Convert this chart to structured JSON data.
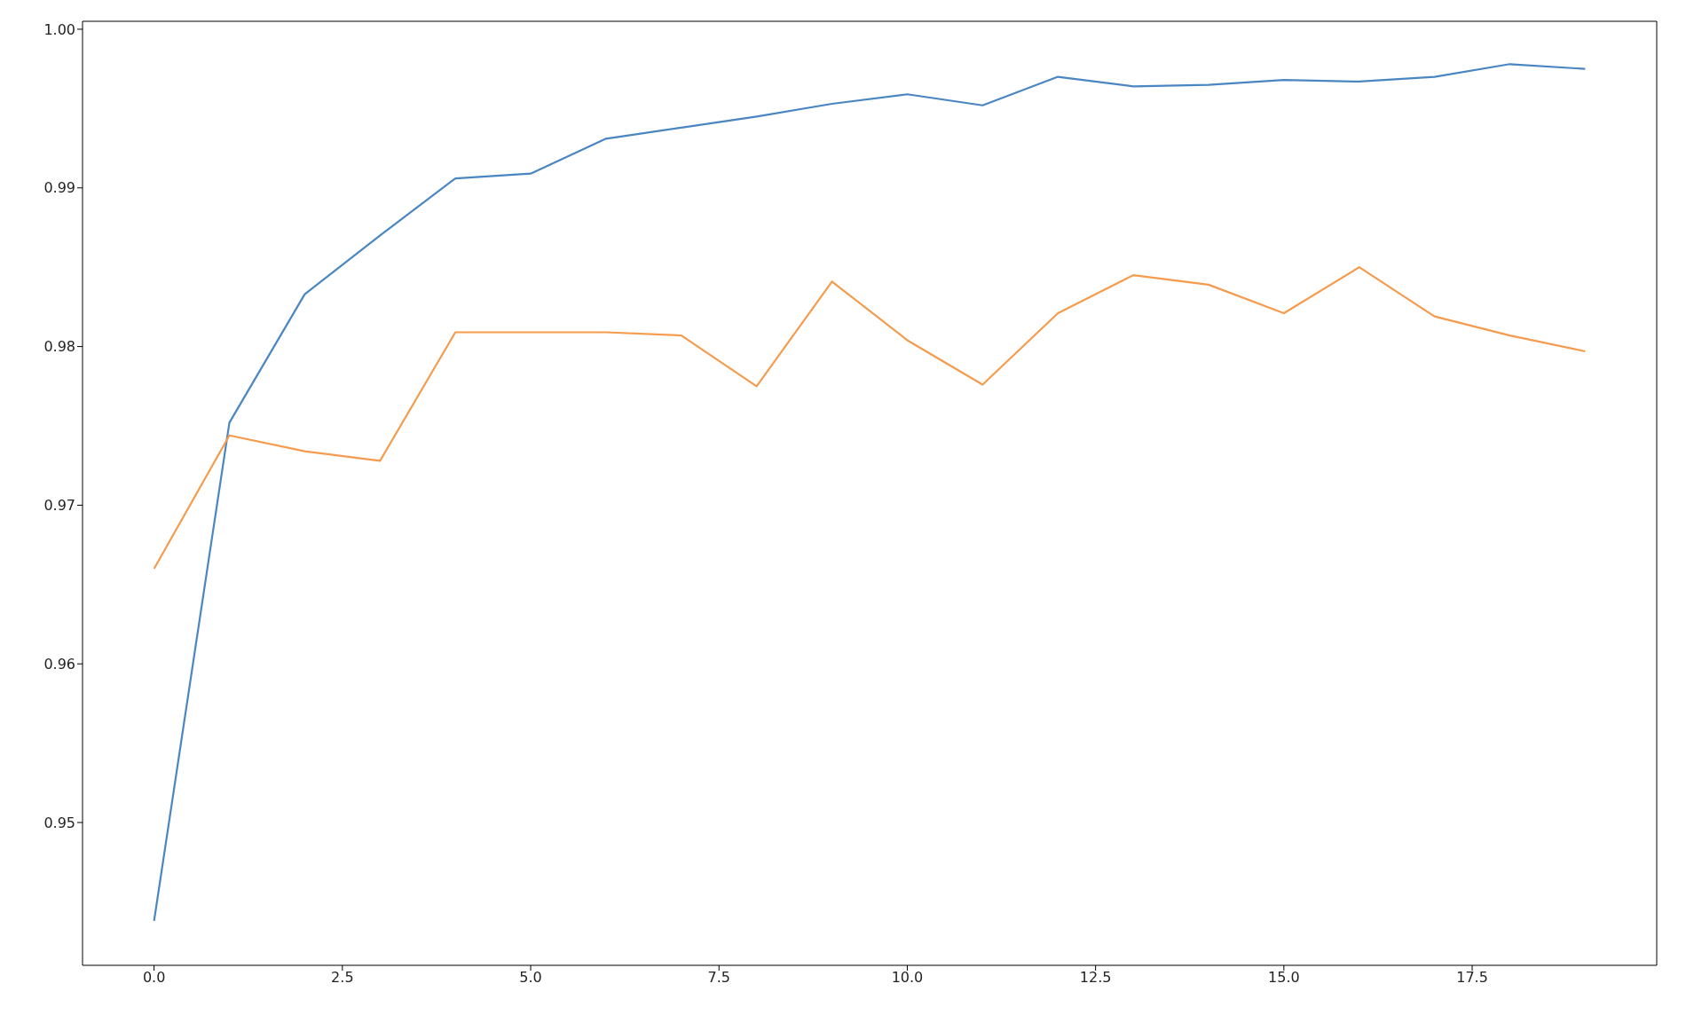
{
  "chart_data": {
    "type": "line",
    "x": [
      0,
      1,
      2,
      3,
      4,
      5,
      6,
      7,
      8,
      9,
      10,
      11,
      12,
      13,
      14,
      15,
      16,
      17,
      18,
      19
    ],
    "series": [
      {
        "color": "#4a86c2",
        "values": [
          0.9438,
          0.9752,
          0.9833,
          0.987,
          0.9906,
          0.9909,
          0.9931,
          0.9938,
          0.9945,
          0.9953,
          0.9959,
          0.9952,
          0.997,
          0.9964,
          0.9965,
          0.9968,
          0.9967,
          0.997,
          0.9978,
          0.9975
        ]
      },
      {
        "color": "#f59b4d",
        "values": [
          0.966,
          0.9744,
          0.9734,
          0.9728,
          0.9809,
          0.9809,
          0.9809,
          0.9807,
          0.9775,
          0.9841,
          0.9804,
          0.9776,
          0.9821,
          0.9845,
          0.9839,
          0.9821,
          0.985,
          0.9819,
          0.9807,
          0.9797
        ]
      }
    ],
    "xlim": [
      -0.95,
      19.95
    ],
    "xticks": [
      {
        "value": 0,
        "label": "0.0"
      },
      {
        "value": 2.5,
        "label": "2.5"
      },
      {
        "value": 5,
        "label": "5.0"
      },
      {
        "value": 7.5,
        "label": "7.5"
      },
      {
        "value": 10,
        "label": "10.0"
      },
      {
        "value": 12.5,
        "label": "12.5"
      },
      {
        "value": 15,
        "label": "15.0"
      },
      {
        "value": 17.5,
        "label": "17.5"
      }
    ],
    "ylim": [
      0.941,
      1.0005
    ],
    "yticks": [
      0.95,
      0.96,
      0.97,
      0.98,
      0.99,
      {
        "value": 1,
        "label": "1.00"
      }
    ],
    "grid": false,
    "legend": false,
    "marker": "none",
    "line_style": "solid"
  }
}
